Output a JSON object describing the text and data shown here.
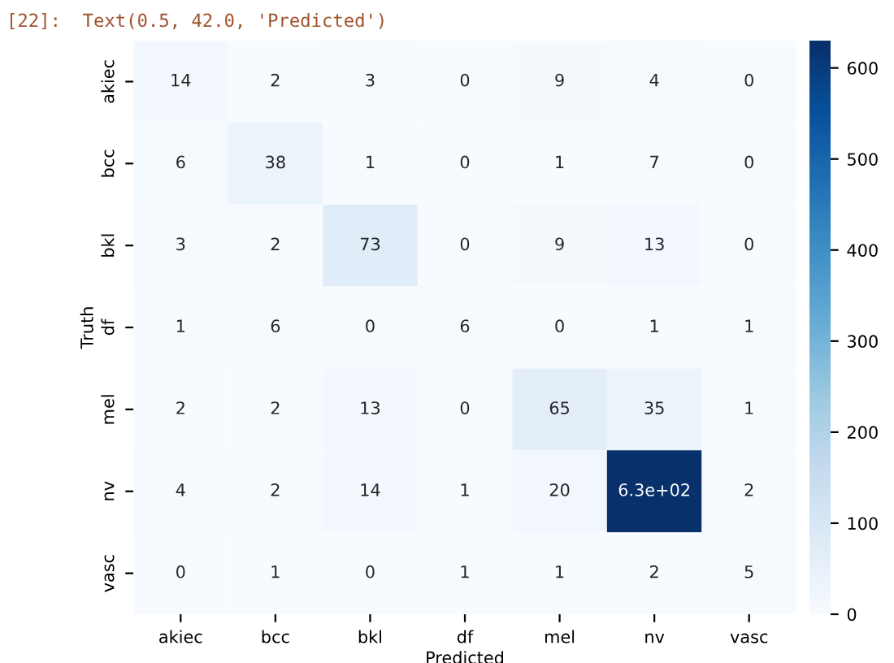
{
  "chart_data": {
    "type": "heatmap",
    "xlabel": "Predicted",
    "ylabel": "Truth",
    "annotations": [
      "[22]:  Text(0.5, 42.0, 'Predicted')"
    ],
    "categories": [
      "akiec",
      "bcc",
      "bkl",
      "df",
      "mel",
      "nv",
      "vasc"
    ],
    "y_categories": [
      "akiec",
      "bcc",
      "bkl",
      "df",
      "mel",
      "nv",
      "vasc"
    ],
    "cells": [
      [
        14,
        2,
        3,
        0,
        9,
        4,
        0
      ],
      [
        6,
        38,
        1,
        0,
        1,
        7,
        0
      ],
      [
        3,
        2,
        73,
        0,
        9,
        13,
        0
      ],
      [
        1,
        6,
        0,
        6,
        0,
        1,
        1
      ],
      [
        2,
        2,
        13,
        0,
        65,
        35,
        1
      ],
      [
        4,
        2,
        14,
        1,
        20,
        630,
        2
      ],
      [
        0,
        1,
        0,
        1,
        1,
        2,
        5
      ]
    ],
    "cell_labels": [
      [
        "14",
        "2",
        "3",
        "0",
        "9",
        "4",
        "0"
      ],
      [
        "6",
        "38",
        "1",
        "0",
        "1",
        "7",
        "0"
      ],
      [
        "3",
        "2",
        "73",
        "0",
        "9",
        "13",
        "0"
      ],
      [
        "1",
        "6",
        "0",
        "6",
        "0",
        "1",
        "1"
      ],
      [
        "2",
        "2",
        "13",
        "0",
        "65",
        "35",
        "1"
      ],
      [
        "4",
        "2",
        "14",
        "1",
        "20",
        "6.3e+02",
        "2"
      ],
      [
        "0",
        "1",
        "0",
        "1",
        "1",
        "2",
        "5"
      ]
    ],
    "clim": [
      0,
      630
    ],
    "cticks": [
      0,
      100,
      200,
      300,
      400,
      500,
      600
    ]
  }
}
